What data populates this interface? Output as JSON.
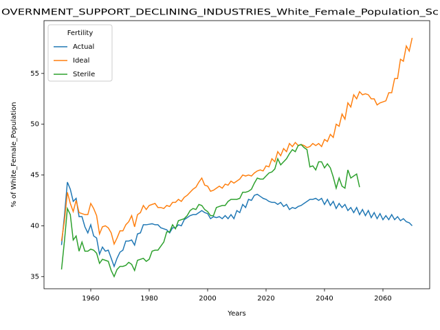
{
  "chart_data": {
    "type": "line",
    "title": "OVERNMENT_SUPPORT_DECLINING_INDUSTRIES_White_Female_Population_Sc",
    "xlabel": "Years",
    "ylabel": "% of White_Female_Population",
    "legend_title": "Fertility",
    "legend": "upper left",
    "x": [
      1950,
      1951,
      1952,
      1953,
      1954,
      1955,
      1956,
      1957,
      1958,
      1959,
      1960,
      1961,
      1962,
      1963,
      1964,
      1965,
      1966,
      1967,
      1968,
      1969,
      1970,
      1971,
      1972,
      1973,
      1974,
      1975,
      1976,
      1977,
      1978,
      1979,
      1980,
      1981,
      1982,
      1983,
      1984,
      1985,
      1986,
      1987,
      1988,
      1989,
      1990,
      1991,
      1992,
      1993,
      1994,
      1995,
      1996,
      1997,
      1998,
      1999,
      2000,
      2001,
      2002,
      2003,
      2004,
      2005,
      2006,
      2007,
      2008,
      2009,
      2010,
      2011,
      2012,
      2013,
      2014,
      2015,
      2016,
      2017,
      2018,
      2019,
      2020,
      2021,
      2022,
      2023,
      2024,
      2025,
      2026,
      2027,
      2028,
      2029,
      2030,
      2031,
      2032,
      2033,
      2034,
      2035,
      2036,
      2037,
      2038,
      2039,
      2040,
      2041,
      2042,
      2043,
      2044,
      2045,
      2046,
      2047,
      2048,
      2049,
      2050,
      2051,
      2052,
      2053,
      2054,
      2055,
      2056,
      2057,
      2058,
      2059,
      2060,
      2061,
      2062,
      2063,
      2064,
      2065,
      2066,
      2067,
      2068,
      2069,
      2070
    ],
    "series": [
      {
        "name": "Actual",
        "color": "#1f77b4",
        "values": [
          38.1,
          41,
          44.3,
          43.6,
          42.4,
          42.7,
          40.9,
          40.9,
          39.9,
          39.3,
          40.1,
          39.0,
          38.8,
          37.2,
          37.9,
          37.5,
          37.6,
          36.8,
          36.0,
          36.8,
          37.4,
          37.6,
          38.5,
          38.5,
          38.6,
          38.1,
          39.2,
          39.3,
          40.1,
          40.1,
          40.15,
          40.2,
          40.1,
          40.1,
          39.8,
          39.7,
          39.6,
          39.3,
          39.8,
          39.8,
          40.1,
          40.0,
          40.6,
          40.8,
          41.0,
          41.1,
          41.1,
          41.3,
          41.5,
          41.3,
          41.2,
          40.7,
          40.9,
          40.8,
          40.9,
          40.7,
          41.0,
          40.7,
          41.1,
          40.7,
          41.5,
          41.3,
          42.1,
          41.8,
          42.6,
          42.5,
          43.0,
          43.1,
          42.9,
          42.7,
          42.6,
          42.4,
          42.3,
          42.3,
          42.1,
          42.3,
          41.9,
          42.1,
          41.6,
          41.8,
          41.7,
          41.9,
          42.0,
          42.2,
          42.4,
          42.6,
          42.6,
          42.7,
          42.5,
          42.7,
          42.1,
          42.6,
          42.0,
          42.4,
          41.7,
          42.2,
          41.8,
          42.1,
          41.5,
          41.8,
          41.3,
          41.8,
          41.1,
          41.6,
          41.0,
          41.5,
          40.8,
          41.3,
          40.7,
          41.2,
          40.6,
          41.0,
          40.6,
          41.1,
          40.6,
          40.9,
          40.5,
          40.7,
          40.4,
          40.3,
          40.0
        ]
      },
      {
        "name": "Ideal",
        "color": "#ff7f0e",
        "values": [
          38.5,
          40.5,
          43.3,
          42.2,
          41.4,
          42.5,
          41.3,
          41.2,
          41.1,
          41.1,
          42.2,
          41.7,
          41.0,
          39.2,
          39.9,
          40.0,
          39.8,
          39.3,
          38.2,
          38.8,
          39.5,
          39.5,
          40.1,
          40.4,
          41.0,
          39.9,
          41.1,
          41.3,
          42.0,
          41.6,
          42.0,
          42.1,
          42.2,
          41.8,
          41.8,
          41.7,
          42.0,
          41.9,
          42.3,
          42.3,
          42.6,
          42.4,
          42.8,
          43.0,
          43.3,
          43.6,
          43.8,
          44.3,
          44.7,
          44.0,
          43.9,
          43.4,
          43.5,
          43.7,
          43.9,
          43.7,
          44.1,
          44.0,
          44.4,
          44.2,
          44.4,
          44.6,
          45.0,
          44.9,
          45.0,
          44.9,
          45.2,
          45.4,
          45.5,
          45.4,
          45.9,
          45.8,
          46.6,
          46.3,
          47.3,
          46.9,
          47.6,
          47.3,
          48.1,
          47.8,
          48.2,
          47.9,
          48.0,
          47.9,
          47.7,
          47.8,
          48.1,
          47.9,
          48.1,
          47.8,
          48.5,
          48.3,
          49.0,
          48.7,
          50.0,
          49.8,
          51.0,
          50.5,
          52.1,
          51.7,
          52.9,
          52.5,
          53.2,
          52.9,
          53.0,
          52.9,
          52.5,
          52.5,
          51.9,
          52.1,
          52.2,
          52.3,
          53.1,
          53.1,
          54.5,
          54.5,
          56.4,
          56.2,
          57.7,
          57.2,
          58.5
        ]
      },
      {
        "name": "Sterile",
        "color": "#2ca02c",
        "values": [
          35.7,
          38.5,
          41.7,
          41.1,
          38.6,
          39.0,
          37.5,
          38.4,
          37.5,
          37.5,
          37.7,
          37.6,
          37.3,
          36.3,
          36.7,
          36.6,
          36.5,
          35.6,
          35.0,
          35.7,
          36.0,
          36.0,
          36.1,
          36.4,
          36.2,
          35.6,
          36.6,
          36.7,
          36.8,
          36.5,
          36.7,
          37.5,
          37.6,
          37.6,
          38.0,
          38.4,
          39.4,
          39.4,
          40.1,
          39.7,
          40.5,
          40.6,
          40.7,
          41.0,
          41.5,
          41.7,
          41.6,
          42.1,
          42.0,
          41.6,
          41.4,
          41.0,
          41.0,
          41.8,
          41.9,
          42.0,
          42.0,
          42.4,
          42.6,
          42.6,
          42.6,
          42.7,
          43.3,
          43.3,
          43.4,
          43.6,
          44.2,
          44.7,
          44.6,
          44.6,
          44.9,
          45.2,
          45.3,
          45.6,
          46.6,
          46.0,
          46.3,
          46.6,
          47.1,
          47.5,
          47.3,
          47.9,
          48.0,
          47.7,
          47.5,
          45.8,
          45.9,
          45.5,
          46.3,
          46.3,
          45.7,
          46.1,
          45.7,
          44.8,
          43.7,
          44.7,
          43.9,
          43.7,
          45.5,
          44.7,
          44.9,
          45.1,
          43.8,
          null,
          null,
          null,
          null,
          null,
          null,
          null,
          null,
          null,
          null,
          null,
          null,
          null,
          null,
          null,
          null,
          null,
          null
        ]
      }
    ],
    "xlim": [
      1944,
      2076
    ],
    "ylim": [
      33.8,
      60.2
    ],
    "xticks": [
      1960,
      1980,
      2000,
      2020,
      2040,
      2060
    ],
    "yticks": [
      35,
      40,
      45,
      50,
      55
    ]
  }
}
